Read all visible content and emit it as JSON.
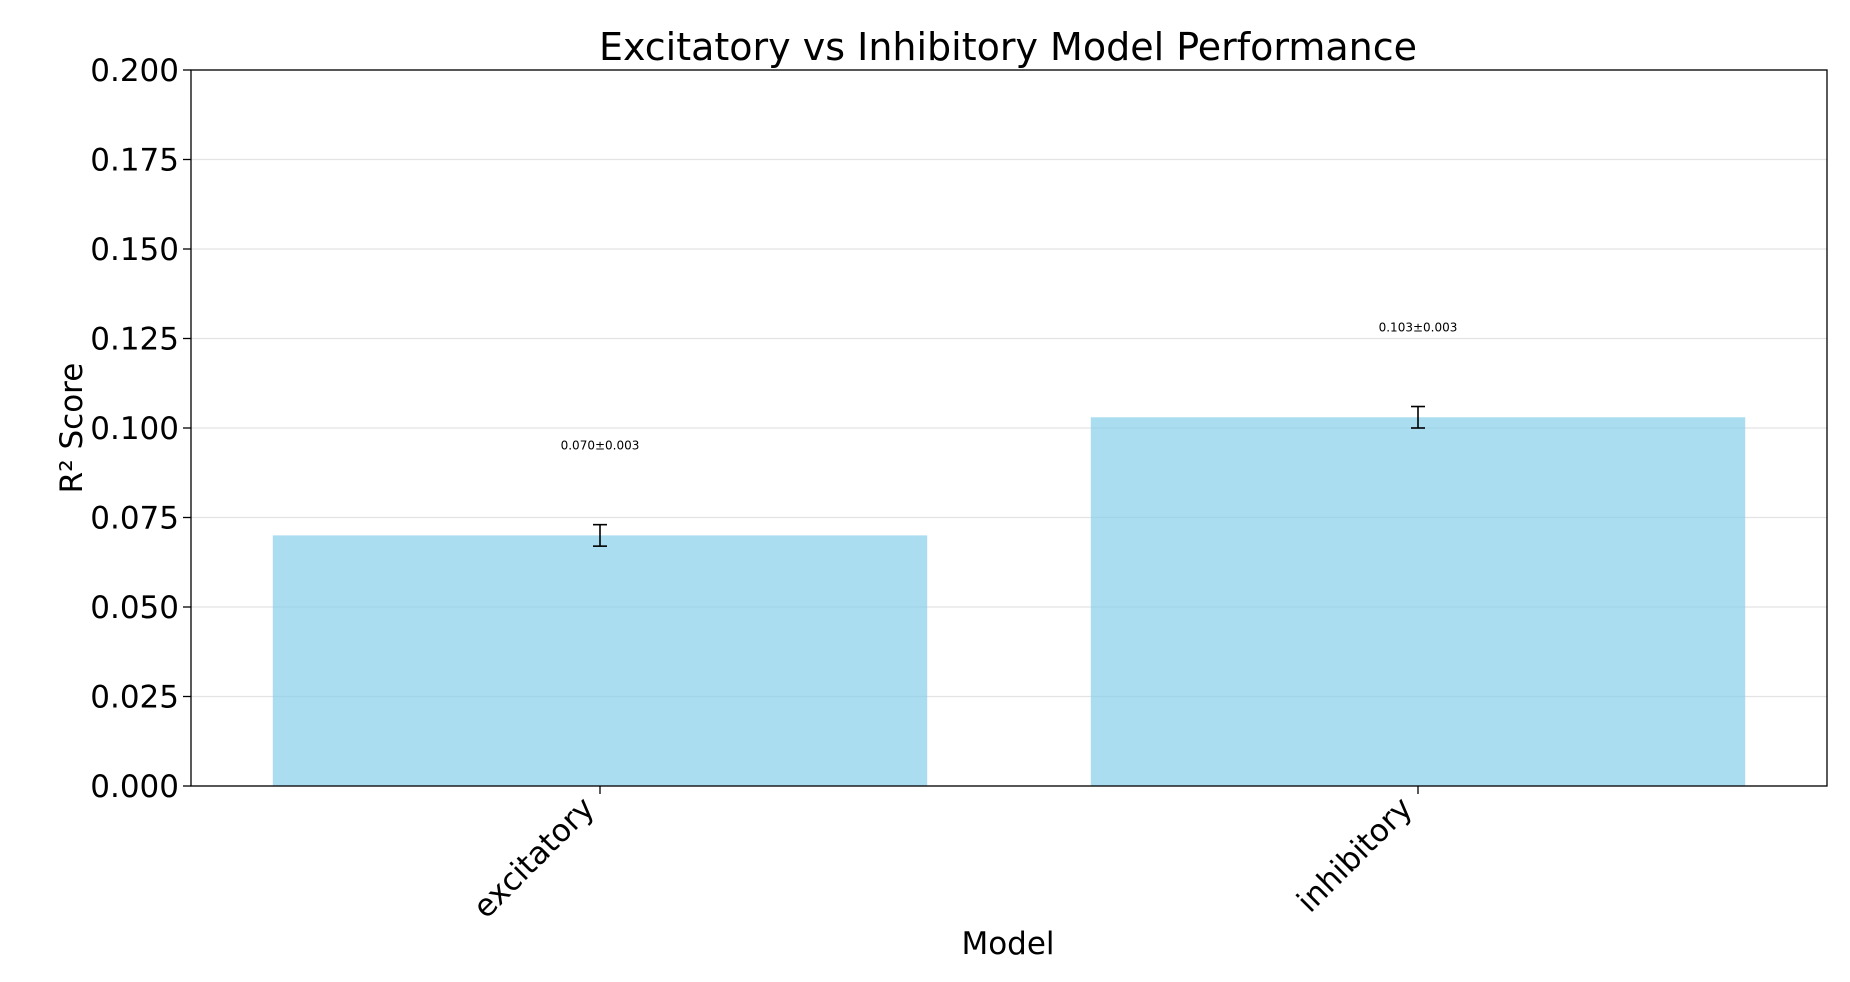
{
  "chart_data": {
    "type": "bar",
    "title": "Excitatory vs Inhibitory Model Performance",
    "xlabel": "Model",
    "ylabel": "R² Score",
    "categories": [
      "excitatory",
      "inhibitory"
    ],
    "values": [
      0.07,
      0.103
    ],
    "errors": [
      0.003,
      0.003
    ],
    "value_labels": [
      "0.070±0.003",
      "0.103±0.003"
    ],
    "ylim": [
      0,
      0.2
    ],
    "yticks": [
      "0.000",
      "0.025",
      "0.050",
      "0.075",
      "0.100",
      "0.125",
      "0.150",
      "0.175",
      "0.200"
    ],
    "grid": true,
    "bar_color": "#87CEEB"
  }
}
